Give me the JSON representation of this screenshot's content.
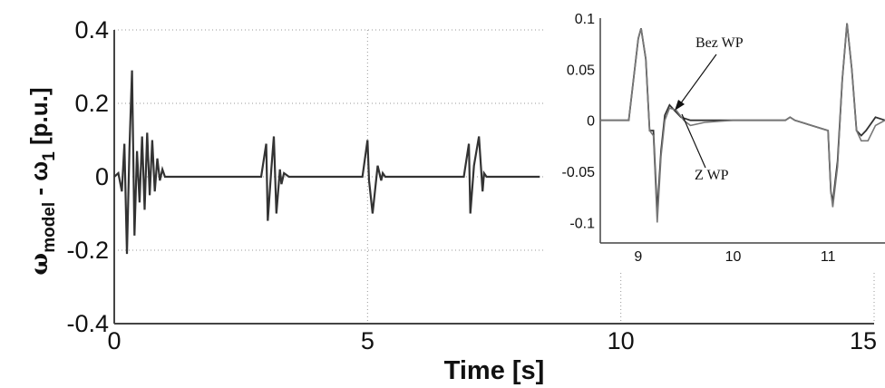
{
  "chart_data": [
    {
      "type": "line",
      "xlabel": "Time [s]",
      "ylabel": {
        "base": "ω",
        "sub1": "model",
        "mid": " - ω",
        "sub2": "1",
        "unit": " [p.u.]"
      },
      "xlim": [
        0,
        15
      ],
      "ylim": [
        -0.4,
        0.4
      ],
      "xticks": [
        0,
        5,
        10,
        15
      ],
      "xtick_labels": [
        "0",
        "5",
        "10",
        "15"
      ],
      "yticks": [
        -0.4,
        -0.2,
        0,
        0.2,
        0.4
      ],
      "ytick_labels": [
        "-0.4",
        "-0.2",
        "0",
        "0.2",
        "0.4"
      ],
      "grid": true,
      "series": [
        {
          "x": [
            0,
            0.08,
            0.15,
            0.2,
            0.25,
            0.3,
            0.35,
            0.4,
            0.45,
            0.5,
            0.55,
            0.6,
            0.65,
            0.7,
            0.75,
            0.8,
            0.85,
            0.9,
            0.95,
            1.0,
            1.05,
            1.1,
            1.15,
            1.2,
            1.25,
            1.3,
            1.35,
            1.45,
            1.6,
            1.8,
            2.0,
            2.5,
            2.9,
            3.0,
            3.03,
            3.1,
            3.15,
            3.2,
            3.27,
            3.3,
            3.35,
            3.45,
            3.6,
            3.8,
            4.0,
            4.5,
            4.9,
            5.0,
            5.03,
            5.1,
            5.2,
            5.27,
            5.3,
            5.35,
            5.45,
            5.6,
            5.8,
            6.0,
            6.5,
            6.9,
            7.0,
            7.03,
            7.1,
            7.2,
            7.27,
            7.3,
            7.35,
            7.45,
            7.6,
            7.8,
            8.0,
            8.4
          ],
          "y": [
            0,
            0.01,
            -0.04,
            0.09,
            -0.21,
            0.08,
            0.29,
            -0.16,
            0.07,
            -0.07,
            0.11,
            -0.09,
            0.12,
            -0.05,
            0.1,
            -0.04,
            0.05,
            -0.01,
            0.02,
            0,
            0,
            0,
            0,
            0,
            0,
            0,
            0,
            0,
            0,
            0,
            0,
            0,
            0,
            0.09,
            -0.12,
            0.02,
            0.11,
            -0.1,
            0.02,
            -0.02,
            0.01,
            0,
            0,
            0,
            0,
            0,
            0,
            0.1,
            -0.01,
            -0.1,
            0.03,
            -0.01,
            0.01,
            0,
            0,
            0,
            0,
            0,
            0,
            0,
            0.09,
            -0.1,
            0.03,
            0.11,
            -0.04,
            0.01,
            0,
            0,
            0,
            0,
            0,
            0
          ]
        }
      ]
    },
    {
      "type": "line",
      "xlim": [
        8.6,
        11.6
      ],
      "ylim": [
        -0.12,
        0.1
      ],
      "xticks": [
        9,
        10,
        11
      ],
      "xtick_labels": [
        "9",
        "10",
        "11"
      ],
      "yticks": [
        -0.1,
        -0.05,
        0,
        0.05,
        0.1
      ],
      "ytick_labels": [
        "-0.1",
        "-0.05",
        "0",
        "0.05",
        "0.1"
      ],
      "annotations": [
        "Bez WP",
        "Z WP"
      ],
      "series": [
        {
          "name": "Bez WP",
          "x": [
            8.6,
            8.9,
            9.0,
            9.03,
            9.08,
            9.12,
            9.16,
            9.2,
            9.24,
            9.28,
            9.33,
            9.38,
            9.45,
            9.55,
            9.7,
            10.0,
            10.55,
            10.6,
            10.65,
            11.0,
            11.03,
            11.05,
            11.1,
            11.15,
            11.2,
            11.25,
            11.3,
            11.35,
            11.4,
            11.5,
            11.6
          ],
          "y": [
            0,
            0,
            0.08,
            0.09,
            0.06,
            -0.01,
            -0.01,
            -0.09,
            -0.03,
            0.005,
            0.015,
            0.01,
            0.003,
            0,
            0,
            0,
            0,
            0.003,
            0,
            -0.01,
            -0.07,
            -0.08,
            -0.04,
            0.04,
            0.095,
            0.05,
            -0.01,
            -0.015,
            -0.01,
            0.003,
            0.0
          ]
        },
        {
          "name": "Z WP",
          "x": [
            8.6,
            8.9,
            9.0,
            9.03,
            9.08,
            9.12,
            9.16,
            9.2,
            9.24,
            9.28,
            9.33,
            9.4,
            9.48,
            9.55,
            9.7,
            10.0,
            10.55,
            10.6,
            10.65,
            11.0,
            11.03,
            11.05,
            11.1,
            11.15,
            11.2,
            11.25,
            11.3,
            11.35,
            11.42,
            11.5,
            11.6
          ],
          "y": [
            0,
            0,
            0.08,
            0.09,
            0.06,
            -0.01,
            -0.015,
            -0.1,
            -0.035,
            0.0,
            0.012,
            0.01,
            0.0,
            -0.005,
            -0.002,
            0,
            0,
            0.003,
            0,
            -0.01,
            -0.07,
            -0.085,
            -0.045,
            0.04,
            0.095,
            0.05,
            -0.01,
            -0.02,
            -0.02,
            -0.005,
            0.0
          ]
        }
      ]
    }
  ]
}
